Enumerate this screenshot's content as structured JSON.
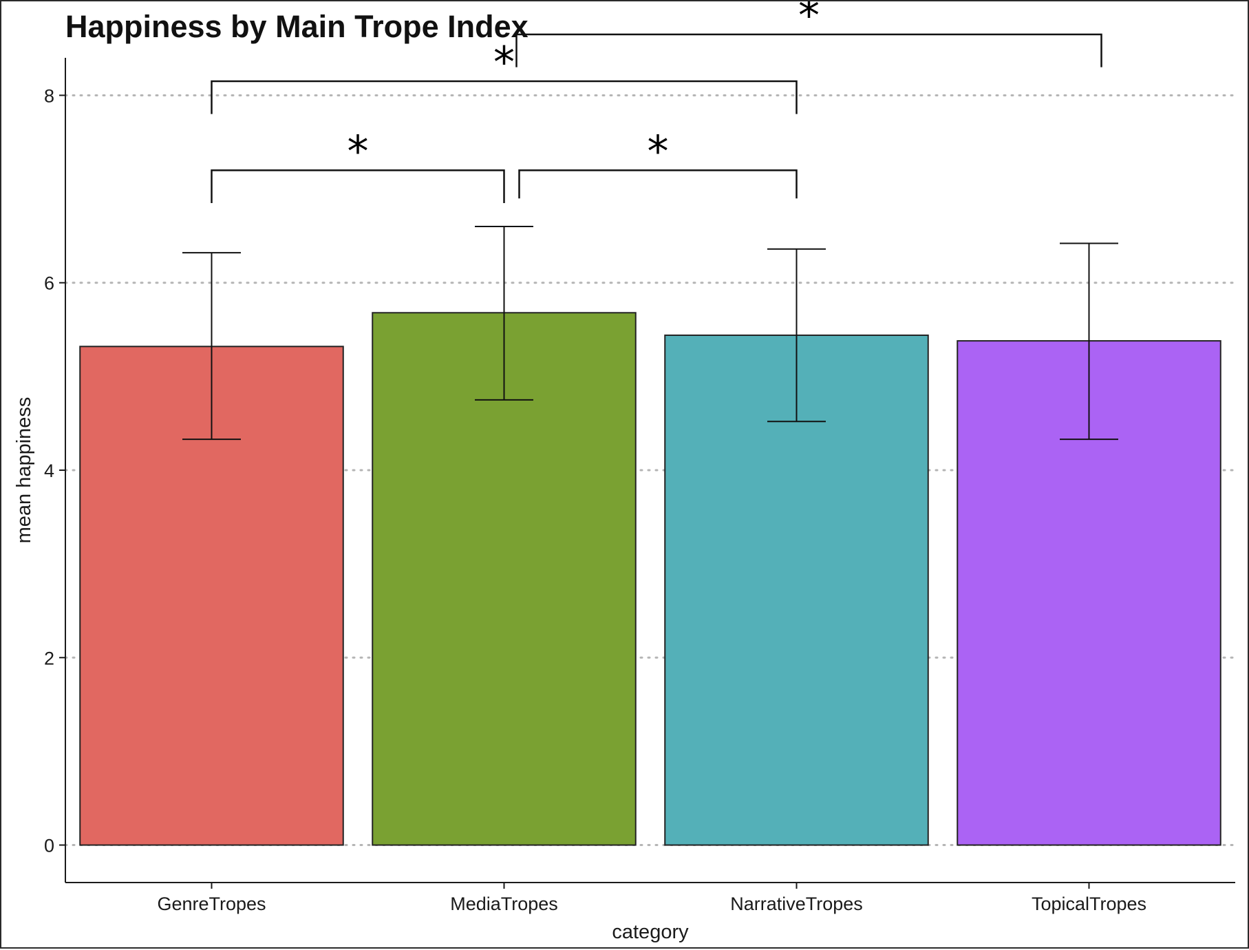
{
  "chart_data": {
    "type": "bar",
    "title": "Happiness by Main Trope Index",
    "xlabel": "category",
    "ylabel": "mean happiness",
    "categories": [
      "GenreTropes",
      "MediaTropes",
      "NarrativeTropes",
      "TopicalTropes"
    ],
    "values": [
      5.32,
      5.68,
      5.44,
      5.38
    ],
    "error_low": [
      4.33,
      4.75,
      4.52,
      4.33
    ],
    "error_high": [
      6.32,
      6.6,
      6.36,
      6.42
    ],
    "colors": [
      "#E16861",
      "#7AA132",
      "#54B0B8",
      "#AB63F4"
    ],
    "ylim": [
      -0.4,
      8.4
    ],
    "yticks": [
      0,
      2,
      4,
      6,
      8
    ],
    "grid": "horizontal dotted",
    "legend": "none",
    "significance": [
      {
        "from": "GenreTropes",
        "to": "MediaTropes",
        "label": "*"
      },
      {
        "from": "MediaTropes",
        "to": "NarrativeTropes",
        "label": "*"
      },
      {
        "from": "GenreTropes",
        "to": "NarrativeTropes",
        "label": "*"
      },
      {
        "from": "MediaTropes",
        "to": "TopicalTropes",
        "label": "*"
      }
    ]
  }
}
